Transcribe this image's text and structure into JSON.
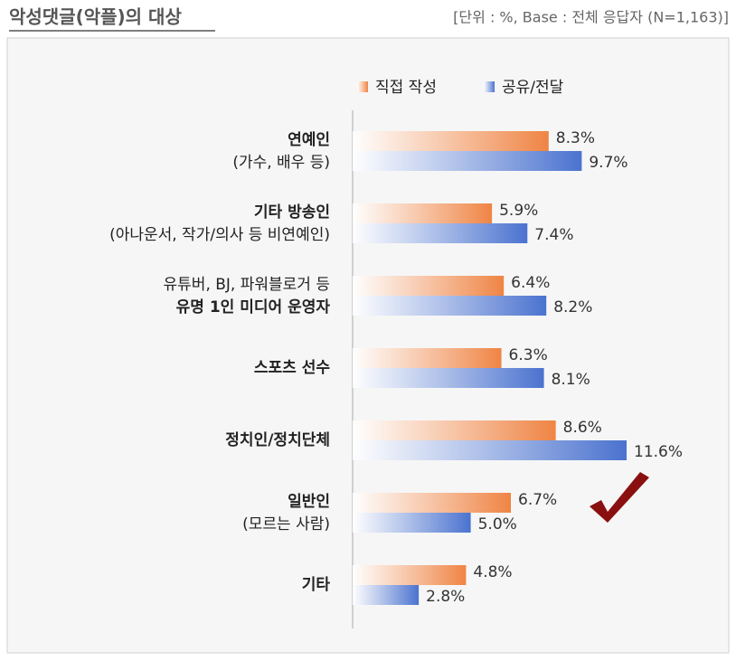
{
  "chart_data": {
    "type": "hbar",
    "title": "악성댓글(악플)의 대상",
    "subtitle": "[단위 : %, Base : 전체 응답자 (N=1,163)]",
    "categories": [
      [
        "연예인",
        "(가수, 배우 등)"
      ],
      [
        "기타 방송인",
        "(아나운서, 작가/의사 등 비연예인)"
      ],
      [
        "유튜버, BJ, 파워블로거 등",
        "유명 1인 미디어 운영자"
      ],
      [
        "스포츠 선수"
      ],
      [
        "정치인/정치단체"
      ],
      [
        "일반인",
        "(모르는 사람)"
      ],
      [
        "기타"
      ]
    ],
    "category_bold_line": [
      0,
      0,
      1,
      0,
      0,
      0,
      0
    ],
    "series": [
      {
        "name": "직접 작성",
        "color": "#ef8444",
        "values": [
          8.3,
          5.9,
          6.4,
          6.3,
          8.6,
          6.7,
          4.8
        ],
        "value_labels": [
          "8.3%",
          "5.9%",
          "6.4%",
          "6.3%",
          "8.6%",
          "6.7%",
          "4.8%"
        ]
      },
      {
        "name": "공유/전달",
        "color": "#4a72cf",
        "values": [
          9.7,
          7.4,
          8.2,
          8.1,
          11.6,
          5.0,
          2.8
        ],
        "value_labels": [
          "9.7%",
          "7.4%",
          "8.2%",
          "8.1%",
          "11.6%",
          "5.0%",
          "2.8%"
        ]
      }
    ],
    "legend": "top"
  }
}
